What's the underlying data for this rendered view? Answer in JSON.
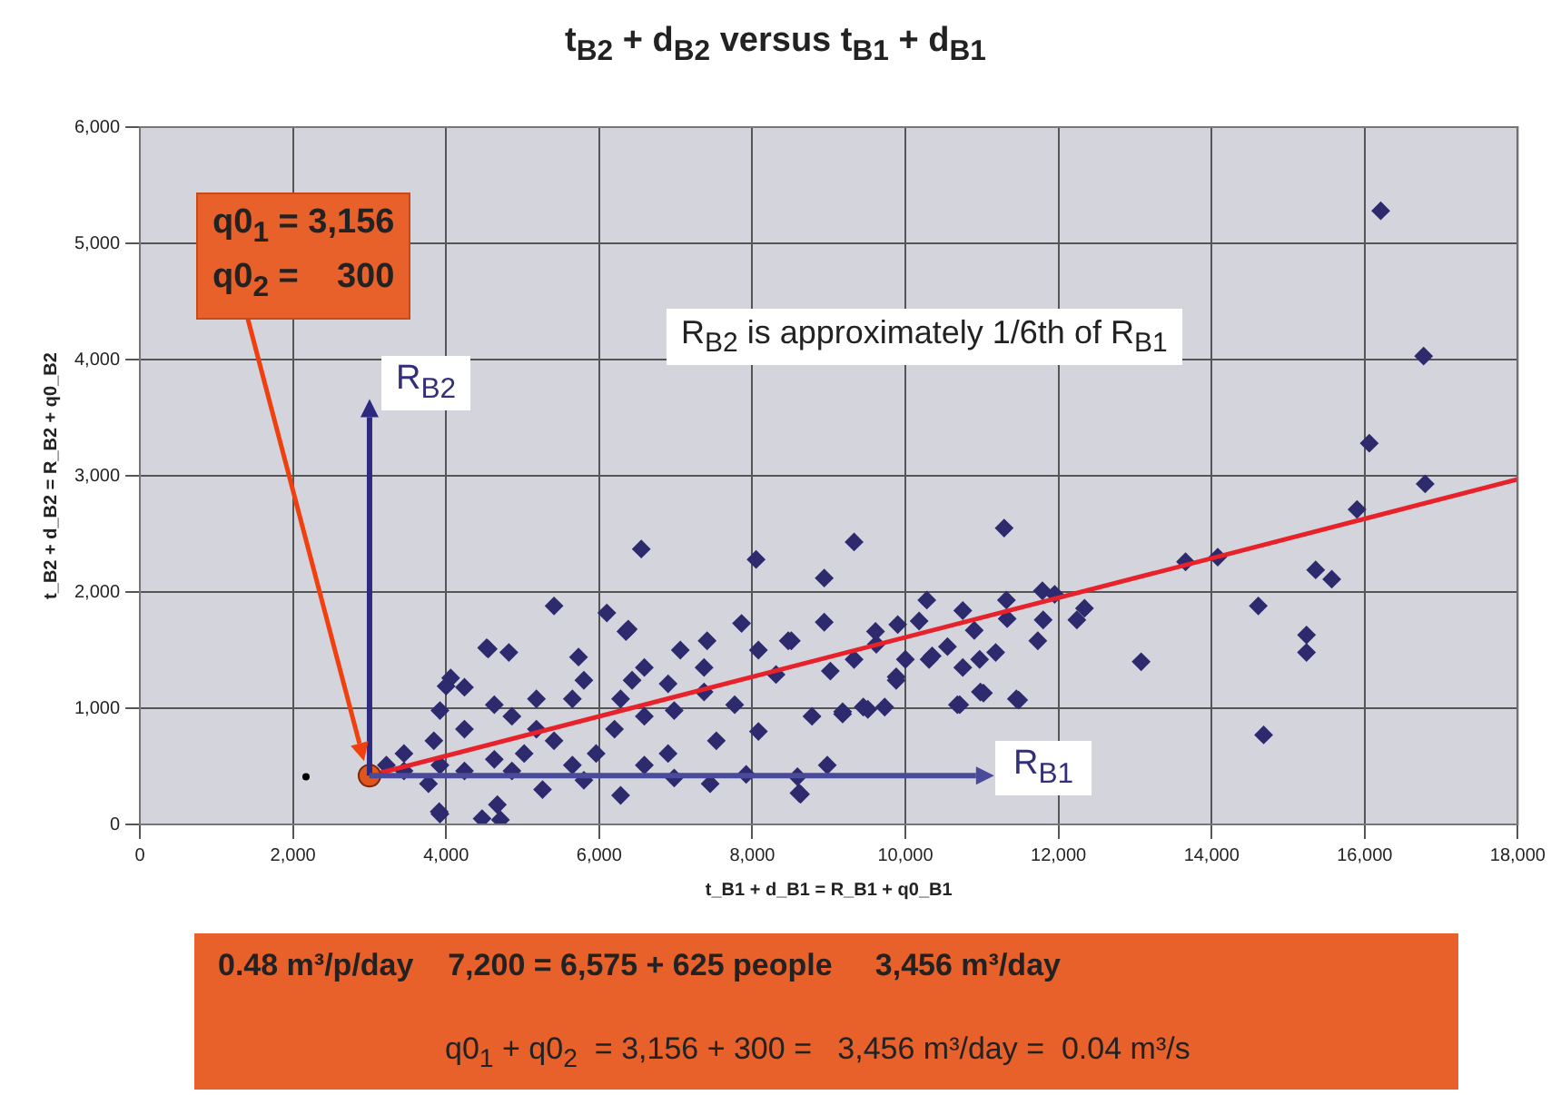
{
  "chart_data": {
    "type": "scatter",
    "title": "t$_{B2}$ + d$_{B2}$ versus t$_{B1}$ + d$_{B1}$",
    "xlabel": "t_B1 + d_B1 = R_B1 + q0_B1",
    "ylabel": "t_B2 + d_B2 = R_B2 + q0_B2",
    "xlim": [
      0,
      18000
    ],
    "xticks": [
      {
        "value": 0,
        "label": "0"
      },
      {
        "value": 2000,
        "label": "2,000"
      },
      {
        "value": 4000,
        "label": "4,000"
      },
      {
        "value": 6000,
        "label": "6,000"
      },
      {
        "value": 8000,
        "label": "8,000"
      },
      {
        "value": 10000,
        "label": "10,000"
      },
      {
        "value": 12000,
        "label": "12,000"
      },
      {
        "value": 14000,
        "label": "14,000"
      },
      {
        "value": 16000,
        "label": "16,000"
      },
      {
        "value": 18000,
        "label": "18,000"
      }
    ],
    "ylim": [
      0,
      6000
    ],
    "yticks": [
      {
        "value": 0,
        "label": "0"
      },
      {
        "value": 1000,
        "label": "1,000"
      },
      {
        "value": 2000,
        "label": "2,000"
      },
      {
        "value": 3000,
        "label": "3,000"
      },
      {
        "value": 4000,
        "label": "4,000"
      },
      {
        "value": 5000,
        "label": "5,000"
      },
      {
        "value": 6000,
        "label": "6,000"
      }
    ],
    "grid": true,
    "series": [
      {
        "type": "scatter",
        "marker": "diamond",
        "color": "#2e2a6e",
        "x": [
          16210,
          16770,
          16060,
          16790,
          15900,
          15360,
          15570,
          14610,
          15240,
          15240,
          14680,
          13660,
          14080,
          13080,
          11290,
          9330,
          8050,
          8940,
          11790,
          11950,
          12340,
          12240,
          11800,
          11320,
          10750,
          10280,
          10180,
          9900,
          11330,
          10900,
          11730,
          11180,
          10970,
          10750,
          10550,
          10310,
          10000,
          9880,
          10680,
          11020,
          11480,
          9510,
          9180,
          8780,
          8980,
          8610,
          9610,
          9620,
          8940,
          8510,
          9330,
          9020,
          8080,
          6550,
          5410,
          6100,
          6380,
          7860,
          4530,
          4820,
          4060,
          4240,
          5730,
          7060,
          7410,
          8470,
          3910,
          4470,
          8630,
          9730,
          11450,
          10980,
          10710,
          9180,
          9450,
          8080,
          7530,
          6900,
          6280,
          5800,
          5260,
          4670,
          3770,
          3450,
          4860,
          7450,
          7920,
          8590,
          6900,
          6280,
          5800,
          5180,
          4630,
          4240,
          3840,
          3450,
          3220,
          3920,
          8310,
          10350,
          9880,
          5410,
          6200,
          6590,
          6980,
          5960,
          5650,
          5020,
          4630,
          5180,
          4860,
          7370,
          7770,
          6590,
          7370,
          6430,
          4240,
          3920,
          6590,
          6980,
          5650,
          4550,
          6350,
          4000,
          3920,
          4710
        ],
        "values": [
          5280,
          4030,
          3280,
          2930,
          2710,
          2190,
          2110,
          1880,
          1630,
          1480,
          770,
          2260,
          2300,
          1400,
          2550,
          2430,
          2280,
          2120,
          2010,
          1980,
          1860,
          1760,
          1760,
          1930,
          1840,
          1930,
          1750,
          1720,
          1770,
          1670,
          1580,
          1480,
          1420,
          1350,
          1530,
          1420,
          1420,
          1270,
          1030,
          1130,
          1070,
          990,
          950,
          930,
          510,
          270,
          1660,
          1550,
          1740,
          1580,
          1420,
          1320,
          1500,
          2370,
          1880,
          1820,
          1680,
          1730,
          1520,
          1480,
          1260,
          1180,
          1440,
          1500,
          1580,
          1580,
          110,
          50,
          260,
          1010,
          1080,
          1140,
          1030,
          970,
          1010,
          800,
          720,
          610,
          250,
          380,
          300,
          170,
          350,
          460,
          460,
          350,
          430,
          410,
          1210,
          1080,
          1240,
          1080,
          1030,
          820,
          720,
          610,
          510,
          980,
          1290,
          1450,
          1240,
          720,
          820,
          930,
          980,
          610,
          510,
          610,
          560,
          820,
          930,
          1140,
          1030,
          1350,
          1350,
          1240,
          460,
          510,
          510,
          400,
          1080,
          1510,
          1660,
          1190,
          90,
          40
        ]
      },
      {
        "type": "scatter",
        "marker": "circle",
        "color": "#000000",
        "x": [
          2170
        ],
        "values": [
          410
        ]
      },
      {
        "type": "line",
        "marker": "none",
        "color": "#e8222a",
        "x": [
          3000,
          18000
        ],
        "values": [
          420,
          2970
        ]
      },
      {
        "type": "scatter",
        "marker": "circle",
        "color": "#e0551e",
        "x": [
          3000
        ],
        "values": [
          420
        ]
      }
    ],
    "annotations": [
      "q0$_{1}$ = 3,156\nq0$_{2}$ =    300",
      {
        "text": "R$_{B2}$",
        "x": 3000,
        "y": 420
      },
      "R$_{B2}$ is approximately 1/6th of R$_{B1}$",
      "R$_{B1}$",
      "0.48 m³/p/day    7,200 = 6,575 + 625 people     3,456 m³/day",
      "q0$_{1}$ + q0$_{2}$  = 3,156 + 300 =   3,456 m³/day =  0.04 m³/s"
    ]
  }
}
